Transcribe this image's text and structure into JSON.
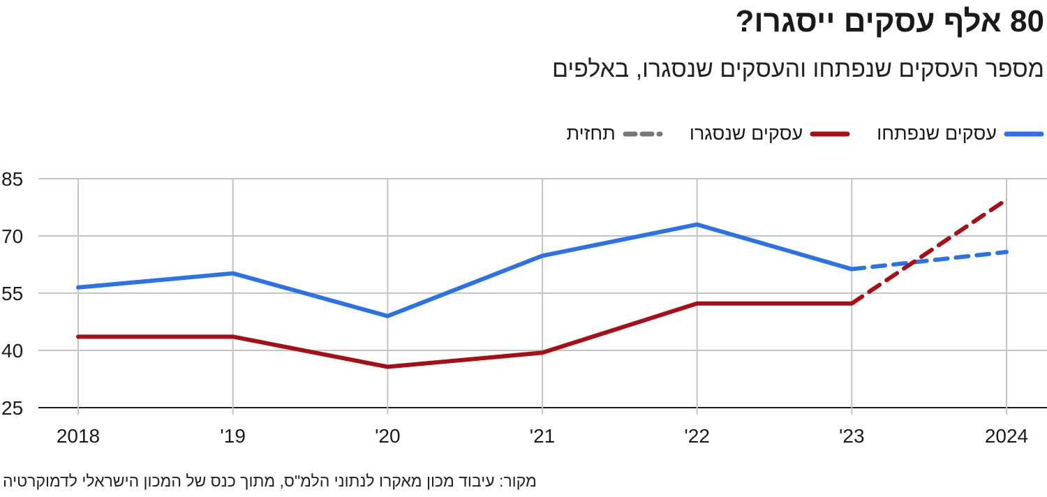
{
  "header": {
    "title": "80 אלף עסקים ייסגרו?",
    "subtitle": "מספר העסקים שנפתחו והעסקים שנסגרו, באלפים"
  },
  "legend": [
    {
      "label": "עסקים שנפתחו",
      "color": "#2b72e8",
      "dashed": false
    },
    {
      "label": "עסקים שנסגרו",
      "color": "#a50f15",
      "dashed": false
    },
    {
      "label": "תחזית",
      "color": "#777777",
      "dashed": true
    }
  ],
  "source": "מקור: עיבוד מכון מאקרו לנתוני הלמ\"ס, מתוך כנס של המכון הישראלי לדמוקרטיה",
  "chart_data": {
    "type": "line",
    "categories": [
      "2018",
      "'19",
      "'20",
      "'21",
      "'22",
      "'23",
      "2024"
    ],
    "ylim": [
      25,
      85
    ],
    "yticks": [
      25,
      40,
      55,
      70,
      85
    ],
    "grid": true,
    "legend_position": "top-right",
    "forecast_from_index": 5,
    "series": [
      {
        "name": "עסקים שנפתחו",
        "color": "#2b72e8",
        "values": [
          56.5,
          60.2,
          49,
          64.8,
          73,
          61.3,
          65.8
        ]
      },
      {
        "name": "עסקים שנסגרו",
        "color": "#a50f15",
        "values": [
          43.6,
          43.6,
          35.7,
          39.4,
          52.3,
          52.3,
          79.5
        ]
      }
    ]
  }
}
